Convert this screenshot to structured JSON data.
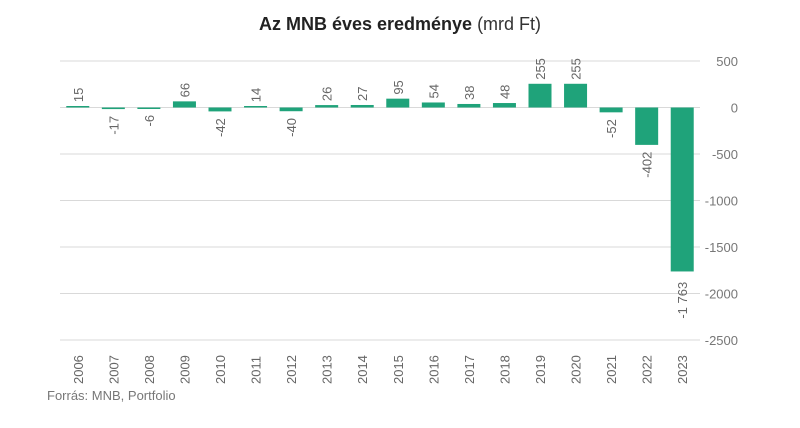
{
  "chart_data": {
    "type": "bar",
    "title": "Az MNB éves eredménye",
    "title_unit": "(mrd Ft)",
    "categories": [
      "2006",
      "2007",
      "2008",
      "2009",
      "2010",
      "2011",
      "2012",
      "2013",
      "2014",
      "2015",
      "2016",
      "2017",
      "2018",
      "2019",
      "2020",
      "2021",
      "2022",
      "2023"
    ],
    "values": [
      15,
      -17,
      -6,
      66,
      -42,
      14,
      -40,
      26,
      27,
      95,
      54,
      38,
      48,
      255,
      255,
      -52,
      -402,
      -1763
    ],
    "value_labels": [
      "15",
      "-17",
      "-6",
      "66",
      "-42",
      "14",
      "-40",
      "26",
      "27",
      "95",
      "54",
      "38",
      "48",
      "255",
      "255",
      "-52",
      "-402",
      "-1 763"
    ],
    "ylim": [
      -2500,
      500
    ],
    "yticks": [
      500,
      0,
      -500,
      -1000,
      -1500,
      -2000,
      -2500
    ],
    "ytick_labels": [
      "500",
      "0",
      "-500",
      "-1000",
      "-1500",
      "-2000",
      "-2500"
    ],
    "y_axis_position": "right",
    "grid": true,
    "bar_color": "#1fa37a",
    "xlabel": "",
    "ylabel": ""
  },
  "source": "Forrás: MNB, Portfolio"
}
